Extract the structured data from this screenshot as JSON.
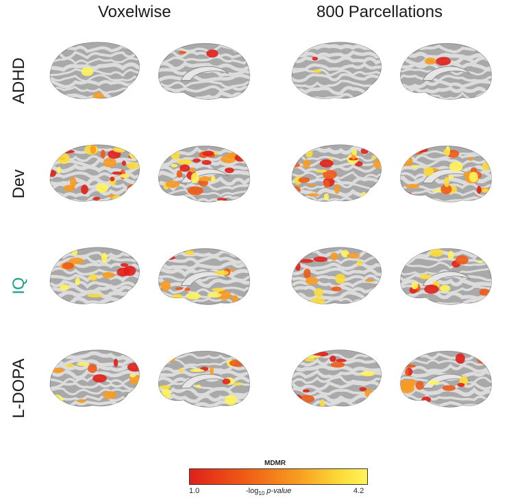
{
  "columns": [
    "Voxelwise",
    "800 Parcellations"
  ],
  "rows": [
    {
      "label": "ADHD",
      "color": "#1a1a1a",
      "activation": "sparse"
    },
    {
      "label": "Dev",
      "color": "#1a1a1a",
      "activation": "dense"
    },
    {
      "label": "IQ",
      "color": "#1aa08a",
      "activation": "moderate"
    },
    {
      "label": "L-DOPA",
      "color": "#1a1a1a",
      "activation": "moderate"
    }
  ],
  "colorbar": {
    "title": "MDMR",
    "min_label": "1.0",
    "max_label": "4.2",
    "axis_prefix": "-log",
    "axis_sub": "10",
    "axis_italic": "p-value",
    "colors": [
      "#e0201a",
      "#ee5a16",
      "#f79a20",
      "#fbdc3a",
      "#fff45a"
    ]
  }
}
